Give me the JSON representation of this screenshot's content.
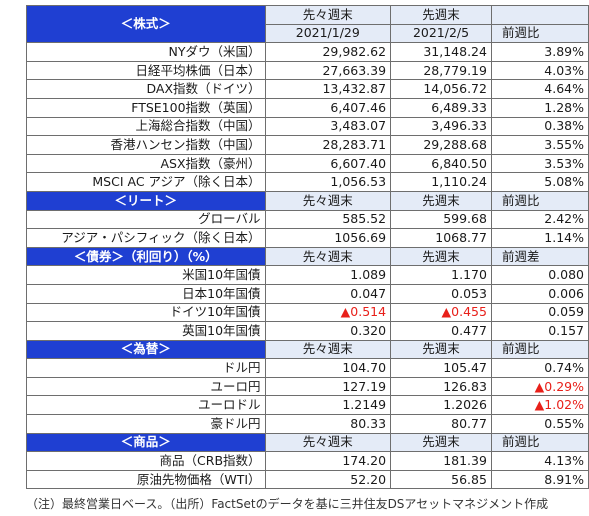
{
  "sections": [
    {
      "title": "＜株式＞",
      "headers": [
        [
          "先々週末",
          "2021/1/29"
        ],
        [
          "先週末",
          "2021/2/5"
        ],
        [
          "",
          "前週比"
        ]
      ],
      "header_align": "right",
      "rows": [
        {
          "name": "NYダウ（米国）",
          "v1": "29,982.62",
          "v2": "31,148.24",
          "v3": "3.89%"
        },
        {
          "name": "日経平均株価（日本）",
          "v1": "27,663.39",
          "v2": "28,779.19",
          "v3": "4.03%"
        },
        {
          "name": "DAX指数（ドイツ）",
          "v1": "13,432.87",
          "v2": "14,056.72",
          "v3": "4.64%"
        },
        {
          "name": "FTSE100指数（英国）",
          "v1": "6,407.46",
          "v2": "6,489.33",
          "v3": "1.28%"
        },
        {
          "name": "上海総合指数（中国）",
          "v1": "3,483.07",
          "v2": "3,496.33",
          "v3": "0.38%"
        },
        {
          "name": "香港ハンセン指数（中国）",
          "v1": "28,283.71",
          "v2": "29,288.68",
          "v3": "3.55%"
        },
        {
          "name": "ASX指数（豪州）",
          "v1": "6,607.40",
          "v2": "6,840.50",
          "v3": "3.53%"
        },
        {
          "name": "MSCI AC アジア（除く日本）",
          "v1": "1,056.53",
          "v2": "1,110.24",
          "v3": "5.08%"
        }
      ]
    },
    {
      "title": "＜リート＞",
      "headers": [
        [
          "先々週末"
        ],
        [
          "先週末"
        ],
        [
          "前週比"
        ]
      ],
      "header_align": "right",
      "rows": [
        {
          "name": "グローバル",
          "v1": "585.52",
          "v2": "599.68",
          "v3": "2.42%"
        },
        {
          "name": "アジア・パシフィック（除く日本）",
          "v1": "1056.69",
          "v2": "1068.77",
          "v3": "1.14%"
        }
      ]
    },
    {
      "title": "＜債券＞（利回り）（%）",
      "headers": [
        [
          "先々週末"
        ],
        [
          "先週末"
        ],
        [
          "前週差"
        ]
      ],
      "header_align": "center",
      "rows": [
        {
          "name": "米国10年国債",
          "v1": "1.089",
          "v2": "1.170",
          "v3": "0.080"
        },
        {
          "name": "日本10年国債",
          "v1": "0.047",
          "v2": "0.053",
          "v3": "0.006"
        },
        {
          "name": "ドイツ10年国債",
          "v1": "▲0.514",
          "v2": "▲0.455",
          "v3": "0.059",
          "neg": [
            "v1",
            "v2"
          ]
        },
        {
          "name": "英国10年国債",
          "v1": "0.320",
          "v2": "0.477",
          "v3": "0.157"
        }
      ]
    },
    {
      "title": "＜為替＞",
      "headers": [
        [
          "先々週末"
        ],
        [
          "先週末"
        ],
        [
          "前週比"
        ]
      ],
      "header_align": "right",
      "rows": [
        {
          "name": "ドル円",
          "v1": "104.70",
          "v2": "105.47",
          "v3": "0.74%"
        },
        {
          "name": "ユーロ円",
          "v1": "127.19",
          "v2": "126.83",
          "v3": "▲0.29%",
          "neg": [
            "v3"
          ]
        },
        {
          "name": "ユーロドル",
          "v1": "1.2149",
          "v2": "1.2026",
          "v3": "▲1.02%",
          "neg": [
            "v3"
          ]
        },
        {
          "name": "豪ドル円",
          "v1": "80.33",
          "v2": "80.77",
          "v3": "0.55%"
        }
      ]
    },
    {
      "title": "＜商品＞",
      "headers": [
        [
          "先々週末"
        ],
        [
          "先週末"
        ],
        [
          "前週比"
        ]
      ],
      "header_align": "right",
      "rows": [
        {
          "name": "商品（CRB指数）",
          "v1": "174.20",
          "v2": "181.39",
          "v3": "4.13%"
        },
        {
          "name": "原油先物価格（WTI）",
          "v1": "52.20",
          "v2": "56.85",
          "v3": "8.91%"
        }
      ]
    }
  ],
  "footnote": "（注）最終営業日ベース。（出所）FactSetのデータを基に三井住友DSアセットマネジメント作成",
  "colors": {
    "section_header_bg": "#1f3fd2",
    "section_header_text": "#ffffff",
    "subheader_bg": "#e4ebf7",
    "negative": "#e8201a",
    "border": "#6e6e6e"
  }
}
